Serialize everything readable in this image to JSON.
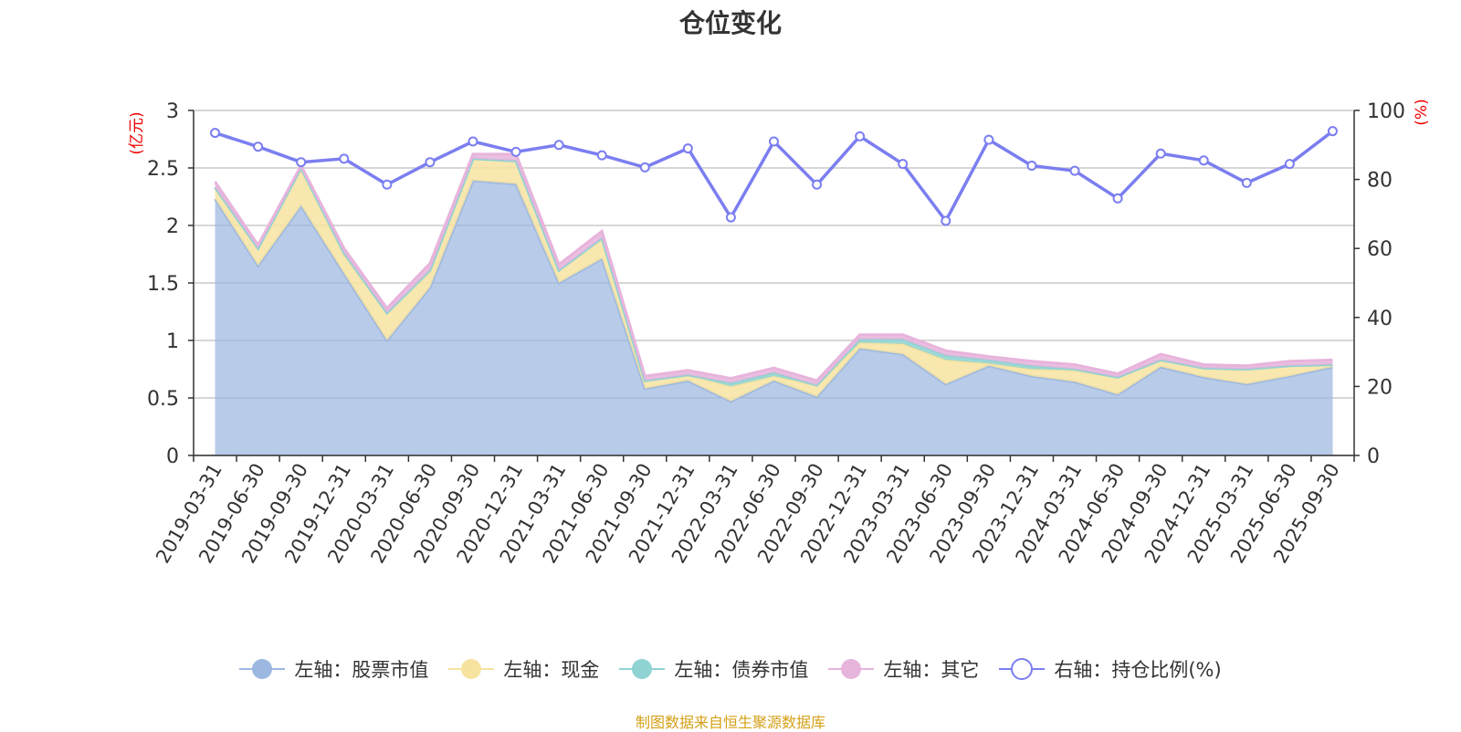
{
  "chart_data": {
    "type": "area",
    "title": "仓位变化",
    "ylabel_left": "(亿元)",
    "ylabel_right": "(%)",
    "ylim_left": [
      0,
      3
    ],
    "ylim_right": [
      0,
      100
    ],
    "yticks_left": [
      "0",
      "0.5",
      "1",
      "1.5",
      "2",
      "2.5",
      "3"
    ],
    "yticks_right": [
      "0",
      "20",
      "40",
      "60",
      "80",
      "100"
    ],
    "categories": [
      "2019-03-31",
      "2019-06-30",
      "2019-09-30",
      "2019-12-31",
      "2020-03-31",
      "2020-06-30",
      "2020-09-30",
      "2020-12-31",
      "2021-03-31",
      "2021-06-30",
      "2021-09-30",
      "2021-12-31",
      "2022-03-31",
      "2022-06-30",
      "2022-09-30",
      "2022-12-31",
      "2023-03-31",
      "2023-06-30",
      "2023-09-30",
      "2023-12-31",
      "2024-03-31",
      "2024-06-30",
      "2024-09-30",
      "2024-12-31",
      "2025-03-31",
      "2025-06-30",
      "2025-09-30"
    ],
    "series": [
      {
        "name": "左轴：股票市值",
        "axis": "left",
        "color": "#9db8e0",
        "values": [
          2.23,
          1.65,
          2.17,
          1.58,
          1.0,
          1.46,
          2.39,
          2.36,
          1.5,
          1.71,
          0.58,
          0.65,
          0.47,
          0.65,
          0.51,
          0.93,
          0.88,
          0.62,
          0.78,
          0.69,
          0.64,
          0.53,
          0.77,
          0.68,
          0.62,
          0.69,
          0.77
        ]
      },
      {
        "name": "左轴：现金",
        "axis": "left",
        "color": "#f7e3a0",
        "values": [
          0.1,
          0.15,
          0.32,
          0.17,
          0.24,
          0.15,
          0.19,
          0.2,
          0.11,
          0.18,
          0.07,
          0.05,
          0.13,
          0.04,
          0.1,
          0.05,
          0.09,
          0.21,
          0.02,
          0.06,
          0.1,
          0.15,
          0.06,
          0.08,
          0.13,
          0.09,
          0.02
        ]
      },
      {
        "name": "左轴：债券市值",
        "axis": "left",
        "color": "#8fd3d3",
        "values": [
          0,
          0,
          0.01,
          0.01,
          0,
          0,
          0,
          0,
          0,
          0,
          0,
          0,
          0.03,
          0.03,
          0,
          0.03,
          0.04,
          0.04,
          0.03,
          0.03,
          0.01,
          0,
          0,
          0,
          0,
          0,
          0
        ]
      },
      {
        "name": "左轴：其它",
        "axis": "left",
        "color": "#e7b4dc",
        "values": [
          0.05,
          0.03,
          0.02,
          0.04,
          0.04,
          0.06,
          0.04,
          0.06,
          0.05,
          0.06,
          0.04,
          0.04,
          0.04,
          0.04,
          0.04,
          0.04,
          0.04,
          0.04,
          0.03,
          0.04,
          0.04,
          0.03,
          0.05,
          0.03,
          0.03,
          0.04,
          0.04
        ]
      },
      {
        "name": "右轴：持仓比例(%)",
        "axis": "right",
        "color": "#7b7ef0",
        "values": [
          93.5,
          89.5,
          85,
          86,
          78.5,
          85,
          91,
          88,
          90,
          87,
          83.5,
          89,
          69,
          91,
          78.5,
          92.5,
          84.5,
          68,
          91.5,
          84,
          82.5,
          74.5,
          87.5,
          85.5,
          79,
          84.5,
          94
        ]
      }
    ]
  },
  "legend": [
    {
      "label": "左轴：股票市值",
      "shape": "circle",
      "color": "#9db8e0"
    },
    {
      "label": "左轴：现金",
      "shape": "circle",
      "color": "#f7e3a0"
    },
    {
      "label": "左轴：债券市值",
      "shape": "circle",
      "color": "#8fd3d3"
    },
    {
      "label": "左轴：其它",
      "shape": "circle",
      "color": "#e7b4dc"
    },
    {
      "label": "右轴：持仓比例(%)",
      "shape": "hollow-circle",
      "color": "#7b7ef0"
    }
  ],
  "source": "制图数据来自恒生聚源数据库"
}
